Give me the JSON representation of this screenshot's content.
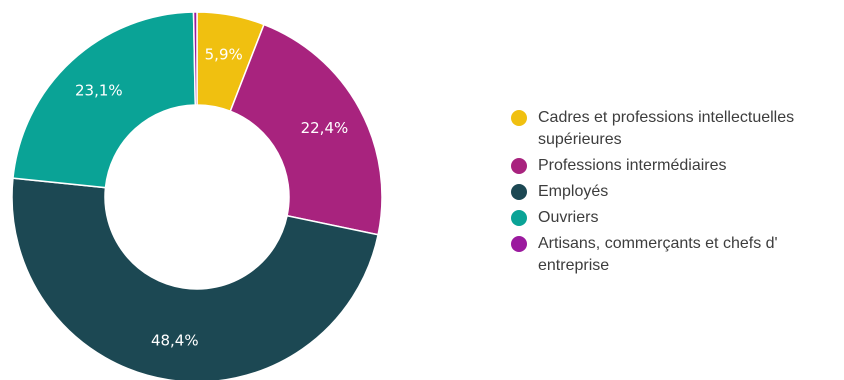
{
  "chart_data": {
    "type": "pie",
    "variant": "donut",
    "legend_position": "right",
    "series": [
      {
        "label": "Cadres et professions intellectuelles supérieures",
        "value": 5.9,
        "display": "5,9%",
        "color": "#f0c010"
      },
      {
        "label": "Professions intermédiaires",
        "value": 22.4,
        "display": "22,4%",
        "color": "#a8237e"
      },
      {
        "label": "Employés",
        "value": 48.4,
        "display": "48,4%",
        "color": "#1c4853"
      },
      {
        "label": "Ouvriers",
        "value": 23.1,
        "display": "23,1%",
        "color": "#0aa396"
      },
      {
        "label": "Artisans, commerçants et chefs d' entreprise",
        "value": 0.3,
        "display": "",
        "color": "#9b1a9e"
      }
    ]
  }
}
